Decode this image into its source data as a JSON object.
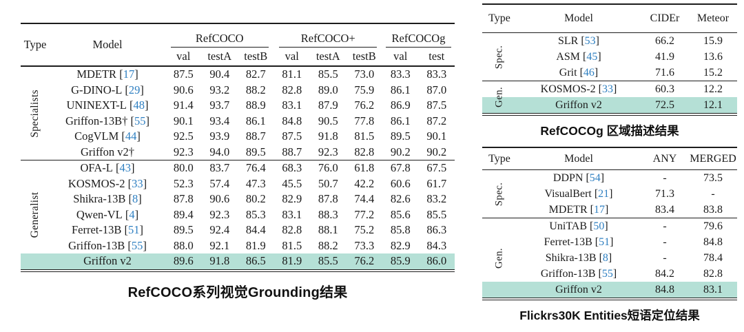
{
  "colors": {
    "highlight": "#b5e0d6",
    "citation": "#2e7fc1",
    "text": "#1b1b1b",
    "rule": "#1c1c1c"
  },
  "tables": {
    "grounding": {
      "caption": "RefCOCO系列视觉Grounding结果",
      "headers": {
        "type": "Type",
        "model": "Model"
      },
      "col_groups": [
        {
          "label": "RefCOCO",
          "cols": [
            "val",
            "testA",
            "testB"
          ]
        },
        {
          "label": "RefCOCO+",
          "cols": [
            "val",
            "testA",
            "testB"
          ]
        },
        {
          "label": "RefCOCOg",
          "cols": [
            "val",
            "test"
          ]
        }
      ],
      "groups": [
        {
          "type_label": "Specialists",
          "rows": [
            {
              "model": "MDETR",
              "cite": "17",
              "values": [
                "87.5",
                "90.4",
                "82.7",
                "81.1",
                "85.5",
                "73.0",
                "83.3",
                "83.3"
              ]
            },
            {
              "model": "G-DINO-L",
              "cite": "29",
              "values": [
                "90.6",
                "93.2",
                "88.2",
                "82.8",
                "89.0",
                "75.9",
                "86.1",
                "87.0"
              ]
            },
            {
              "model": "UNINEXT-L",
              "cite": "48",
              "values": [
                "91.4",
                "93.7",
                "88.9",
                "83.1",
                "87.9",
                "76.2",
                "86.9",
                "87.5"
              ]
            },
            {
              "model": "Griffon-13B†",
              "cite": "55",
              "values": [
                "90.1",
                "93.4",
                "86.1",
                "84.8",
                "90.5",
                "77.8",
                "86.1",
                "87.2"
              ]
            },
            {
              "model": "CogVLM",
              "cite": "44",
              "values": [
                "92.5",
                "93.9",
                "88.7",
                "87.5",
                "91.8",
                "81.5",
                "89.5",
                "90.1"
              ]
            },
            {
              "model": "Griffon v2†",
              "cite": null,
              "values": [
                "92.3",
                "94.0",
                "89.5",
                "88.7",
                "92.3",
                "82.8",
                "90.2",
                "90.2"
              ]
            }
          ]
        },
        {
          "type_label": "Generalist",
          "rows": [
            {
              "model": "OFA-L",
              "cite": "43",
              "values": [
                "80.0",
                "83.7",
                "76.4",
                "68.3",
                "76.0",
                "61.8",
                "67.8",
                "67.5"
              ]
            },
            {
              "model": "KOSMOS-2",
              "cite": "33",
              "values": [
                "52.3",
                "57.4",
                "47.3",
                "45.5",
                "50.7",
                "42.2",
                "60.6",
                "61.7"
              ]
            },
            {
              "model": "Shikra-13B",
              "cite": "8",
              "values": [
                "87.8",
                "90.6",
                "80.2",
                "82.9",
                "87.8",
                "74.4",
                "82.6",
                "83.2"
              ]
            },
            {
              "model": "Qwen-VL",
              "cite": "4",
              "values": [
                "89.4",
                "92.3",
                "85.3",
                "83.1",
                "88.3",
                "77.2",
                "85.6",
                "85.5"
              ]
            },
            {
              "model": "Ferret-13B",
              "cite": "51",
              "values": [
                "89.5",
                "92.4",
                "84.4",
                "82.8",
                "88.1",
                "75.2",
                "85.8",
                "86.3"
              ]
            },
            {
              "model": "Griffon-13B",
              "cite": "55",
              "values": [
                "88.0",
                "92.1",
                "81.9",
                "81.5",
                "88.2",
                "73.3",
                "82.9",
                "84.3"
              ]
            },
            {
              "model": "Griffon v2",
              "cite": null,
              "highlight": true,
              "values": [
                "89.6",
                "91.8",
                "86.5",
                "81.9",
                "85.5",
                "76.2",
                "85.9",
                "86.0"
              ]
            }
          ]
        }
      ]
    },
    "region_caption": {
      "caption": "RefCOCOg 区域描述结果",
      "headers": {
        "type": "Type",
        "model": "Model"
      },
      "columns": [
        "CIDEr",
        "Meteor"
      ],
      "groups": [
        {
          "type_label": "Spec.",
          "rows": [
            {
              "model": "SLR",
              "cite": "53",
              "values": [
                "66.2",
                "15.9"
              ]
            },
            {
              "model": "ASM",
              "cite": "45",
              "values": [
                "41.9",
                "13.6"
              ]
            },
            {
              "model": "Grit",
              "cite": "46",
              "values": [
                "71.6",
                "15.2"
              ]
            }
          ]
        },
        {
          "type_label": "Gen.",
          "rows": [
            {
              "model": "KOSMOS-2",
              "cite": "33",
              "values": [
                "60.3",
                "12.2"
              ]
            },
            {
              "model": "Griffon v2",
              "cite": null,
              "highlight": true,
              "values": [
                "72.5",
                "12.1"
              ]
            }
          ]
        }
      ]
    },
    "phrase_grounding": {
      "caption": "Flickrs30K Entities短语定位结果",
      "headers": {
        "type": "Type",
        "model": "Model"
      },
      "columns": [
        "ANY",
        "MERGED"
      ],
      "groups": [
        {
          "type_label": "Spec.",
          "rows": [
            {
              "model": "DDPN",
              "cite": "54",
              "values": [
                "-",
                "73.5"
              ]
            },
            {
              "model": "VisualBert",
              "cite": "21",
              "values": [
                "71.3",
                "-"
              ]
            },
            {
              "model": "MDETR",
              "cite": "17",
              "values": [
                "83.4",
                "83.8"
              ]
            }
          ]
        },
        {
          "type_label": "Gen.",
          "rows": [
            {
              "model": "UniTAB",
              "cite": "50",
              "values": [
                "-",
                "79.6"
              ]
            },
            {
              "model": "Ferret-13B",
              "cite": "51",
              "values": [
                "-",
                "84.8"
              ]
            },
            {
              "model": "Shikra-13B",
              "cite": "8",
              "values": [
                "-",
                "78.4"
              ]
            },
            {
              "model": "Griffon-13B",
              "cite": "55",
              "values": [
                "84.2",
                "82.8"
              ]
            },
            {
              "model": "Griffon v2",
              "cite": null,
              "highlight": true,
              "values": [
                "84.8",
                "83.1"
              ]
            }
          ]
        }
      ]
    }
  }
}
